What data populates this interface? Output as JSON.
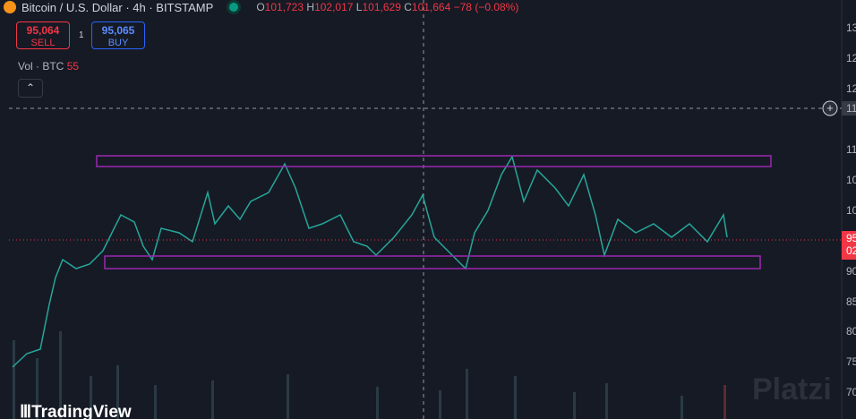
{
  "header": {
    "symbol": "Bitcoin / U.S. Dollar · 4h · BITSTAMP",
    "open_label": "O",
    "open": "101,723",
    "high_label": "H",
    "high": "102,017",
    "low_label": "L",
    "low": "101,629",
    "close_label": "C",
    "close": "101,664",
    "change": "−78 (−0.08%)"
  },
  "trade": {
    "sell_price": "95,064",
    "sell_label": "SELL",
    "quantity": "1",
    "buy_price": "95,065",
    "buy_label": "BUY"
  },
  "volume": {
    "label": "Vol · BTC",
    "value": "55"
  },
  "price_axis": [
    "13",
    "12",
    "12",
    "11",
    "11",
    "10",
    "10",
    "90",
    "85",
    "80",
    "75",
    "70"
  ],
  "current_price": {
    "top": "95",
    "bottom": "02"
  },
  "brand": "TradingView",
  "watermark": "Platzi"
}
